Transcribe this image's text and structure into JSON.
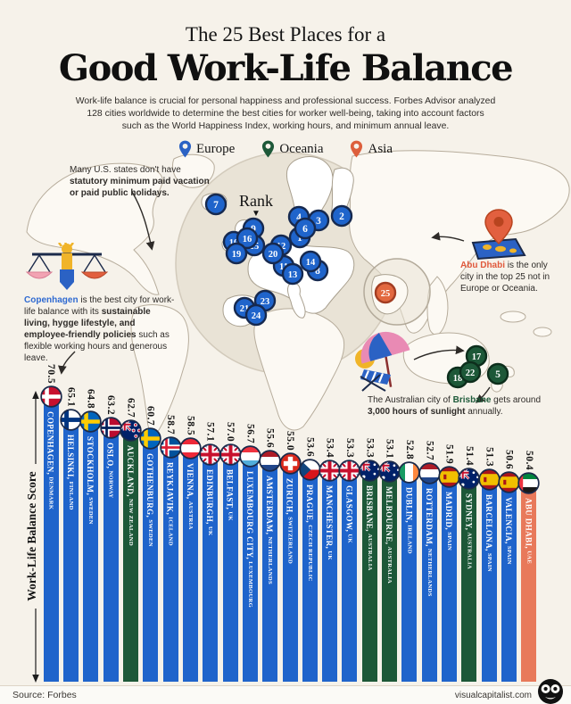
{
  "header": {
    "title_line1": "The 25 Best Places for a",
    "title_line2": "Good Work-Life Balance",
    "description_lines": [
      "Work-life balance is crucial for personal happiness and professional success. Forbes Advisor analyzed",
      "128 cities worldwide to determine the best cities for worker well-being, taking into account factors",
      "such as the World Happiness Index, working hours, and minimum annual leave."
    ]
  },
  "legend": {
    "items": [
      {
        "label": "Europe",
        "color": "#2b62c4"
      },
      {
        "label": "Oceania",
        "color": "#1d5838"
      },
      {
        "label": "Asia",
        "color": "#dd5f3c"
      }
    ]
  },
  "map": {
    "rank_label": "Rank",
    "region_colors": {
      "europe": {
        "fill": "#1f64cb",
        "ring": "#16294f"
      },
      "oceania": {
        "fill": "#1d5838",
        "ring": "#0d2e1c"
      },
      "asia": {
        "fill": "#e2683f",
        "ring": "#a33d22"
      }
    },
    "markers": [
      {
        "rank": 1,
        "x": 336,
        "y": 106,
        "region": "europe"
      },
      {
        "rank": 2,
        "x": 383,
        "y": 82,
        "region": "europe"
      },
      {
        "rank": 3,
        "x": 357,
        "y": 87,
        "region": "europe"
      },
      {
        "rank": 4,
        "x": 335,
        "y": 83,
        "region": "europe"
      },
      {
        "rank": 5,
        "x": 558,
        "y": 259,
        "region": "oceania"
      },
      {
        "rank": 6,
        "x": 342,
        "y": 96,
        "region": "europe"
      },
      {
        "rank": 7,
        "x": 242,
        "y": 69,
        "region": "europe"
      },
      {
        "rank": 8,
        "x": 356,
        "y": 143,
        "region": "europe"
      },
      {
        "rank": 9,
        "x": 284,
        "y": 96,
        "region": "europe"
      },
      {
        "rank": 10,
        "x": 262,
        "y": 111,
        "region": "europe"
      },
      {
        "rank": 11,
        "x": 318,
        "y": 138,
        "region": "europe"
      },
      {
        "rank": 12,
        "x": 315,
        "y": 115,
        "region": "europe"
      },
      {
        "rank": 13,
        "x": 328,
        "y": 147,
        "region": "europe"
      },
      {
        "rank": 14,
        "x": 348,
        "y": 133,
        "region": "europe"
      },
      {
        "rank": 15,
        "x": 285,
        "y": 115,
        "region": "europe"
      },
      {
        "rank": 16,
        "x": 277,
        "y": 107,
        "region": "europe"
      },
      {
        "rank": 17,
        "x": 534,
        "y": 239,
        "region": "oceania"
      },
      {
        "rank": 18,
        "x": 513,
        "y": 263,
        "region": "oceania"
      },
      {
        "rank": 19,
        "x": 265,
        "y": 124,
        "region": "europe"
      },
      {
        "rank": 20,
        "x": 306,
        "y": 124,
        "region": "europe"
      },
      {
        "rank": 21,
        "x": 274,
        "y": 185,
        "region": "europe"
      },
      {
        "rank": 22,
        "x": 527,
        "y": 257,
        "region": "oceania"
      },
      {
        "rank": 23,
        "x": 297,
        "y": 177,
        "region": "europe"
      },
      {
        "rank": 24,
        "x": 287,
        "y": 193,
        "region": "europe"
      },
      {
        "rank": 25,
        "x": 432,
        "y": 168,
        "region": "asia"
      }
    ]
  },
  "annotations": {
    "us": {
      "segments": [
        {
          "t": "Many U.S. states don't have "
        },
        {
          "t": "statutory minimum paid vacation or paid public holidays.",
          "b": true
        }
      ]
    },
    "copenhagen": {
      "segments": [
        {
          "t": "Copenhagen",
          "b": true,
          "c": "#2f6ad1"
        },
        {
          "t": " is the best city for work-life balance with its "
        },
        {
          "t": "sustainable living, hygge lifestyle, and employee-friendly policies",
          "b": true
        },
        {
          "t": " such as flexible working hours and generous leave."
        }
      ]
    },
    "abu_dhabi": {
      "segments": [
        {
          "t": "Abu Dhabi",
          "b": true,
          "c": "#e0593c"
        },
        {
          "t": " is the only city in the top 25 not in Europe or Oceania."
        }
      ]
    },
    "brisbane": {
      "segments": [
        {
          "t": "The Australian city of "
        },
        {
          "t": "Brisbane",
          "b": true,
          "c": "#1d5a39"
        },
        {
          "t": " gets around "
        },
        {
          "t": "3,000 hours of sunlight",
          "b": true
        },
        {
          "t": " annually."
        }
      ]
    }
  },
  "chart_data": {
    "type": "bar",
    "title": "The 25 Best Places for a Good Work-Life Balance",
    "ylabel": "Work-Life Balance Score",
    "ylim": [
      0,
      70.5
    ],
    "bars": [
      {
        "rank": 1,
        "city": "Copenhagen",
        "country": "Denmark",
        "value": 70.5,
        "region": "europe",
        "flag": "dk"
      },
      {
        "rank": 2,
        "city": "Helsinki",
        "country": "Finland",
        "value": 65.1,
        "region": "europe",
        "flag": "fi"
      },
      {
        "rank": 3,
        "city": "Stockholm",
        "country": "Sweden",
        "value": 64.8,
        "region": "europe",
        "flag": "se"
      },
      {
        "rank": 4,
        "city": "Oslo",
        "country": "Norway",
        "value": 63.2,
        "region": "europe",
        "flag": "no"
      },
      {
        "rank": 5,
        "city": "Auckland",
        "country": "New Zealand",
        "value": 62.7,
        "region": "oceania",
        "flag": "nz"
      },
      {
        "rank": 6,
        "city": "Gothenburg",
        "country": "Sweden",
        "value": 60.7,
        "region": "europe",
        "flag": "se"
      },
      {
        "rank": 7,
        "city": "Reykjavik",
        "country": "Iceland",
        "value": 58.7,
        "region": "europe",
        "flag": "is"
      },
      {
        "rank": 8,
        "city": "Vienna",
        "country": "Austria",
        "value": 58.5,
        "region": "europe",
        "flag": "at"
      },
      {
        "rank": 9,
        "city": "Edinburgh",
        "country": "UK",
        "value": 57.1,
        "region": "europe",
        "flag": "uk"
      },
      {
        "rank": 10,
        "city": "Belfast",
        "country": "UK",
        "value": 57.0,
        "region": "europe",
        "flag": "uk"
      },
      {
        "rank": 11,
        "city": "Luxembourg City",
        "country": "Luxembourg",
        "value": 56.7,
        "region": "europe",
        "flag": "lu"
      },
      {
        "rank": 12,
        "city": "Amsterdam",
        "country": "Netherlands",
        "value": 55.6,
        "region": "europe",
        "flag": "nl"
      },
      {
        "rank": 13,
        "city": "Zurich",
        "country": "Switzerland",
        "value": 55.0,
        "region": "europe",
        "flag": "ch"
      },
      {
        "rank": 14,
        "city": "Prague",
        "country": "Czech Republic",
        "value": 53.6,
        "region": "europe",
        "flag": "cz"
      },
      {
        "rank": 15,
        "city": "Manchester",
        "country": "UK",
        "value": 53.4,
        "region": "europe",
        "flag": "uk"
      },
      {
        "rank": 16,
        "city": "Glasgow",
        "country": "UK",
        "value": 53.3,
        "region": "europe",
        "flag": "uk"
      },
      {
        "rank": 17,
        "city": "Brisbane",
        "country": "Australia",
        "value": 53.3,
        "region": "oceania",
        "flag": "au"
      },
      {
        "rank": 18,
        "city": "Melbourne",
        "country": "Australia",
        "value": 53.1,
        "region": "oceania",
        "flag": "au"
      },
      {
        "rank": 19,
        "city": "Dublin",
        "country": "Ireland",
        "value": 52.8,
        "region": "europe",
        "flag": "ie"
      },
      {
        "rank": 20,
        "city": "Rotterdam",
        "country": "Netherlands",
        "value": 52.7,
        "region": "europe",
        "flag": "nl"
      },
      {
        "rank": 21,
        "city": "Madrid",
        "country": "Spain",
        "value": 51.9,
        "region": "europe",
        "flag": "es"
      },
      {
        "rank": 22,
        "city": "Sydney",
        "country": "Australia",
        "value": 51.4,
        "region": "oceania",
        "flag": "au"
      },
      {
        "rank": 23,
        "city": "Barcelona",
        "country": "Spain",
        "value": 51.3,
        "region": "europe",
        "flag": "es"
      },
      {
        "rank": 24,
        "city": "Valencia",
        "country": "Spain",
        "value": 50.6,
        "region": "europe",
        "flag": "es"
      },
      {
        "rank": 25,
        "city": "Abu Dhabi",
        "country": "UAE",
        "value": 50.4,
        "region": "asia",
        "flag": "ae"
      }
    ],
    "bar_colors": {
      "europe": "#1f64cb",
      "oceania": "#1d5838",
      "asia": "#e8795a"
    }
  },
  "footer": {
    "source": "Source: Forbes",
    "site": "visualcapitalist.com"
  }
}
